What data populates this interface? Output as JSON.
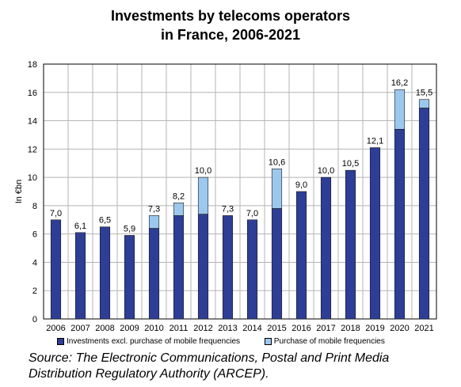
{
  "chart_data": {
    "type": "bar",
    "stacked": true,
    "title": [
      "Investments by telecoms operators",
      "in France, 2006-2021"
    ],
    "ylabel": "In €bn",
    "xlabel": "",
    "ylim": [
      0,
      18
    ],
    "yticks": [
      "0",
      "2",
      "4",
      "6",
      "8",
      "10",
      "12",
      "14",
      "16",
      "18"
    ],
    "grid": true,
    "legend_position": "bottom",
    "categories": [
      "2006",
      "2007",
      "2008",
      "2009",
      "2010",
      "2011",
      "2012",
      "2013",
      "2014",
      "2015",
      "2016",
      "2017",
      "2018",
      "2019",
      "2020",
      "2021"
    ],
    "series": [
      {
        "name": "Investments excl. purchase of mobile frequencies",
        "color": "#2e3e96",
        "values": [
          7.0,
          6.1,
          6.5,
          5.9,
          6.4,
          7.3,
          7.4,
          7.3,
          7.0,
          7.8,
          9.0,
          10.0,
          10.5,
          12.1,
          13.4,
          14.9
        ]
      },
      {
        "name": "Purchase of mobile frequencies",
        "color": "#9dc8ee",
        "values": [
          0,
          0,
          0,
          0,
          0.9,
          0.9,
          2.6,
          0,
          0,
          2.8,
          0,
          0,
          0,
          0,
          2.8,
          0.6
        ]
      }
    ],
    "total_labels": [
      "7,0",
      "6,1",
      "6,5",
      "5,9",
      "7,3",
      "8,2",
      "10,0",
      "7,3",
      "7,0",
      "10,6",
      "9,0",
      "10,0",
      "10,5",
      "12,1",
      "16,2",
      "15,5"
    ]
  },
  "source": [
    "Source: The Electronic Communications, Postal and Print Media",
    "Distribution Regulatory Authority (ARCEP)."
  ]
}
